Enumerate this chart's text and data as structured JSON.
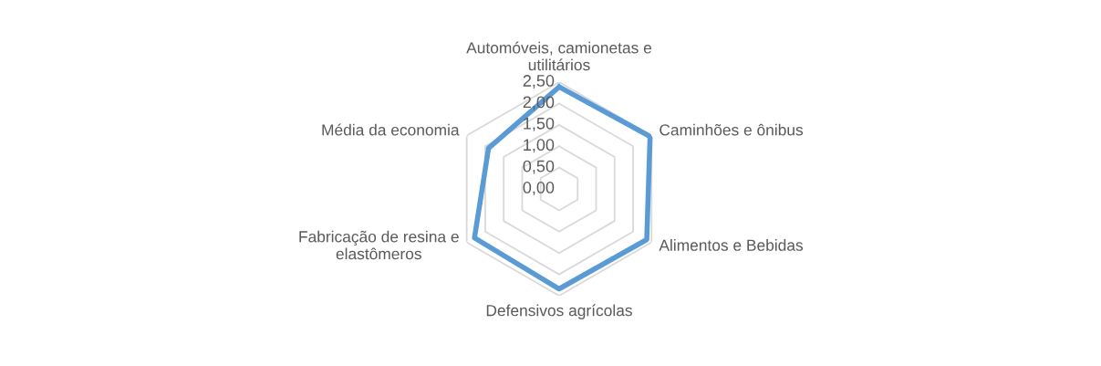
{
  "chart_data": {
    "type": "radar",
    "categories": [
      "Automóveis, camionetas e\nutilitários",
      "Caminhões e ônibus",
      "Alimentos e Bebidas",
      "Defensivos agrícolas",
      "Fabricação de resina e\nelastômeros",
      "Média da economia"
    ],
    "series": [
      {
        "color": "#5b9bd5",
        "values": [
          2.39,
          2.46,
          2.37,
          2.34,
          2.29,
          1.91
        ]
      }
    ],
    "ylim": [
      0,
      2.5
    ],
    "yticks": [
      {
        "value": 0,
        "label": "0,00"
      },
      {
        "value": 0.5,
        "label": "0,50"
      },
      {
        "value": 1,
        "label": "1,00"
      },
      {
        "value": 1.5,
        "label": "1,50"
      },
      {
        "value": 2,
        "label": "2,00"
      },
      {
        "value": 2.5,
        "label": "2,50"
      }
    ],
    "grid": true
  }
}
